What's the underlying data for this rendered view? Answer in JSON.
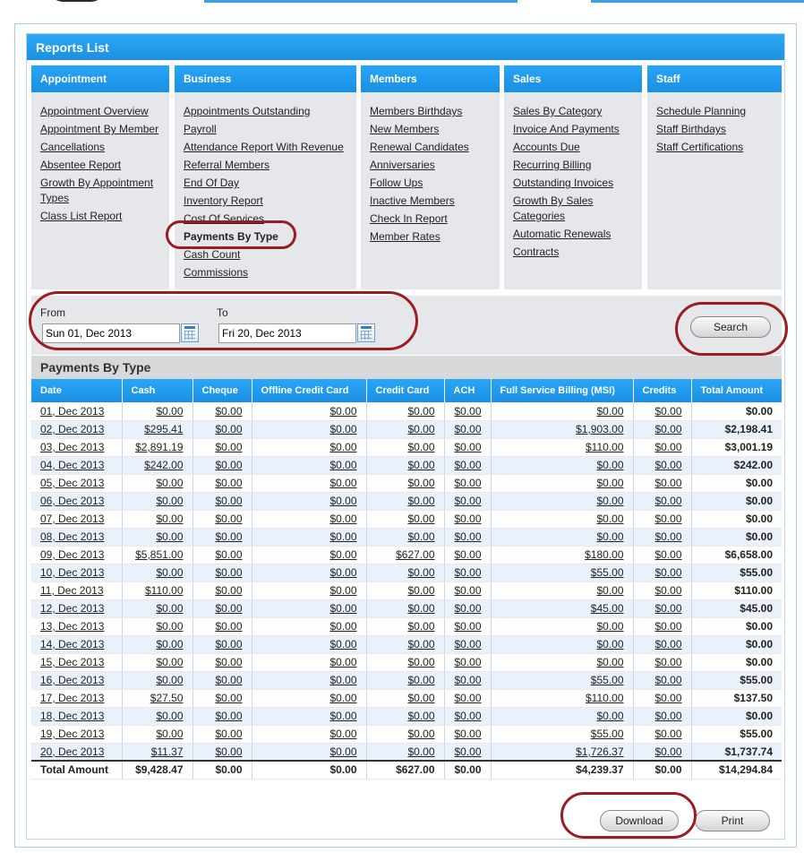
{
  "panel": {
    "title": "Reports List"
  },
  "categories": [
    {
      "title": "Appointment",
      "links": [
        "Appointment Overview",
        "Appointment By Member",
        "Cancellations",
        "Absentee Report",
        "Growth By Appointment Types",
        "Class List Report"
      ]
    },
    {
      "title": "Business",
      "links": [
        "Appointments Outstanding",
        "Payroll",
        "Attendance Report With Revenue",
        "Referral Members",
        "End Of Day",
        "Inventory Report",
        "Cost Of Services",
        "Payments By Type",
        "Cash Count",
        "Commissions"
      ],
      "active": "Payments By Type"
    },
    {
      "title": "Members",
      "links": [
        "Members Birthdays",
        "New Members",
        "Renewal Candidates",
        "Anniversaries",
        "Follow Ups",
        "Inactive Members",
        "Check In Report",
        "Member Rates"
      ]
    },
    {
      "title": "Sales",
      "links": [
        "Sales By Category",
        "Invoice And Payments",
        "Accounts Due",
        "Recurring Billing",
        "Outstanding Invoices",
        "Growth By Sales Categories",
        "Automatic Renewals",
        "Contracts"
      ]
    },
    {
      "title": "Staff",
      "links": [
        "Schedule Planning",
        "Staff Birthdays",
        "Staff Certifications"
      ]
    }
  ],
  "filter": {
    "from_label": "From",
    "from_value": "Sun 01, Dec 2013",
    "to_label": "To",
    "to_value": "Fri 20, Dec 2013",
    "search_label": "Search",
    "calendar_icon": "calendar-icon"
  },
  "results": {
    "title": "Payments By Type",
    "columns": [
      "Date",
      "Cash",
      "Cheque",
      "Offline Credit Card",
      "Credit Card",
      "ACH",
      "Full Service Billing (MSI)",
      "Credits",
      "Total Amount"
    ],
    "rows": [
      [
        "01, Dec 2013",
        "$0.00",
        "$0.00",
        "$0.00",
        "$0.00",
        "$0.00",
        "$0.00",
        "$0.00",
        "$0.00"
      ],
      [
        "02, Dec 2013",
        "$295.41",
        "$0.00",
        "$0.00",
        "$0.00",
        "$0.00",
        "$1,903.00",
        "$0.00",
        "$2,198.41"
      ],
      [
        "03, Dec 2013",
        "$2,891.19",
        "$0.00",
        "$0.00",
        "$0.00",
        "$0.00",
        "$110.00",
        "$0.00",
        "$3,001.19"
      ],
      [
        "04, Dec 2013",
        "$242.00",
        "$0.00",
        "$0.00",
        "$0.00",
        "$0.00",
        "$0.00",
        "$0.00",
        "$242.00"
      ],
      [
        "05, Dec 2013",
        "$0.00",
        "$0.00",
        "$0.00",
        "$0.00",
        "$0.00",
        "$0.00",
        "$0.00",
        "$0.00"
      ],
      [
        "06, Dec 2013",
        "$0.00",
        "$0.00",
        "$0.00",
        "$0.00",
        "$0.00",
        "$0.00",
        "$0.00",
        "$0.00"
      ],
      [
        "07, Dec 2013",
        "$0.00",
        "$0.00",
        "$0.00",
        "$0.00",
        "$0.00",
        "$0.00",
        "$0.00",
        "$0.00"
      ],
      [
        "08, Dec 2013",
        "$0.00",
        "$0.00",
        "$0.00",
        "$0.00",
        "$0.00",
        "$0.00",
        "$0.00",
        "$0.00"
      ],
      [
        "09, Dec 2013",
        "$5,851.00",
        "$0.00",
        "$0.00",
        "$627.00",
        "$0.00",
        "$180.00",
        "$0.00",
        "$6,658.00"
      ],
      [
        "10, Dec 2013",
        "$0.00",
        "$0.00",
        "$0.00",
        "$0.00",
        "$0.00",
        "$55.00",
        "$0.00",
        "$55.00"
      ],
      [
        "11, Dec 2013",
        "$110.00",
        "$0.00",
        "$0.00",
        "$0.00",
        "$0.00",
        "$0.00",
        "$0.00",
        "$110.00"
      ],
      [
        "12, Dec 2013",
        "$0.00",
        "$0.00",
        "$0.00",
        "$0.00",
        "$0.00",
        "$45.00",
        "$0.00",
        "$45.00"
      ],
      [
        "13, Dec 2013",
        "$0.00",
        "$0.00",
        "$0.00",
        "$0.00",
        "$0.00",
        "$0.00",
        "$0.00",
        "$0.00"
      ],
      [
        "14, Dec 2013",
        "$0.00",
        "$0.00",
        "$0.00",
        "$0.00",
        "$0.00",
        "$0.00",
        "$0.00",
        "$0.00"
      ],
      [
        "15, Dec 2013",
        "$0.00",
        "$0.00",
        "$0.00",
        "$0.00",
        "$0.00",
        "$0.00",
        "$0.00",
        "$0.00"
      ],
      [
        "16, Dec 2013",
        "$0.00",
        "$0.00",
        "$0.00",
        "$0.00",
        "$0.00",
        "$55.00",
        "$0.00",
        "$55.00"
      ],
      [
        "17, Dec 2013",
        "$27.50",
        "$0.00",
        "$0.00",
        "$0.00",
        "$0.00",
        "$110.00",
        "$0.00",
        "$137.50"
      ],
      [
        "18, Dec 2013",
        "$0.00",
        "$0.00",
        "$0.00",
        "$0.00",
        "$0.00",
        "$0.00",
        "$0.00",
        "$0.00"
      ],
      [
        "19, Dec 2013",
        "$0.00",
        "$0.00",
        "$0.00",
        "$0.00",
        "$0.00",
        "$55.00",
        "$0.00",
        "$55.00"
      ],
      [
        "20, Dec 2013",
        "$11.37",
        "$0.00",
        "$0.00",
        "$0.00",
        "$0.00",
        "$1,726.37",
        "$0.00",
        "$1,737.74"
      ]
    ],
    "totals": [
      "Total Amount",
      "$9,428.47",
      "$0.00",
      "$0.00",
      "$627.00",
      "$0.00",
      "$4,239.37",
      "$0.00",
      "$14,294.84"
    ]
  },
  "actions": {
    "download_label": "Download",
    "print_label": "Print"
  },
  "colors": {
    "header_blue": "#1c8fe0",
    "highlight_ring": "#9b1d24",
    "panel_gray": "#e5e7eb"
  }
}
